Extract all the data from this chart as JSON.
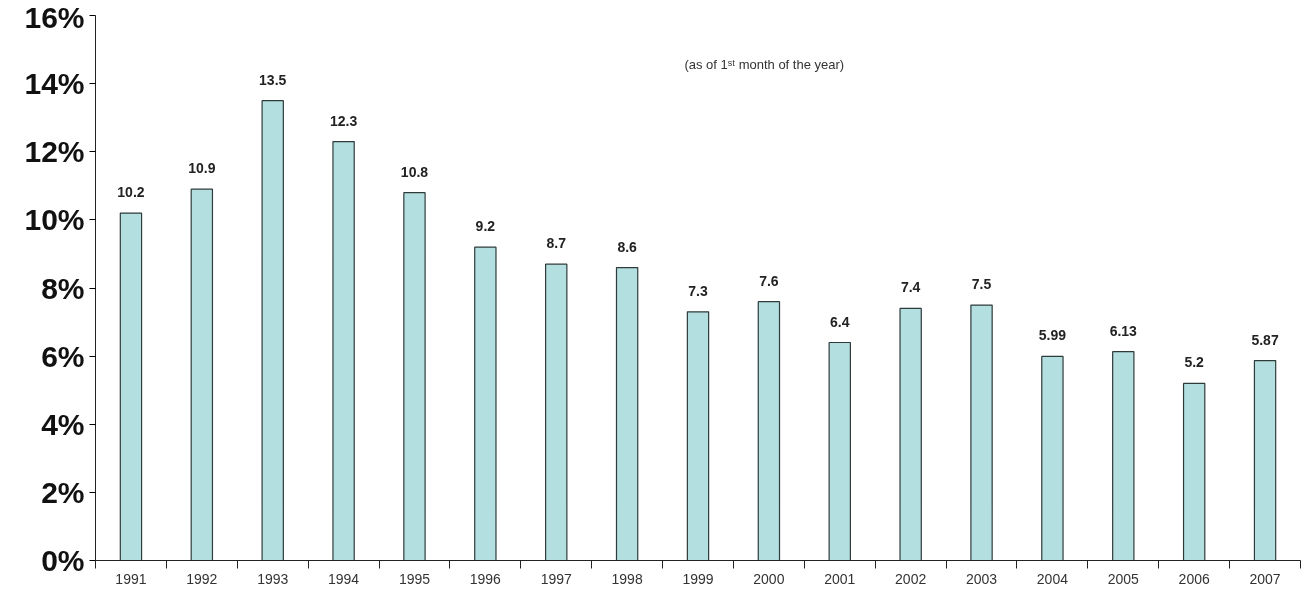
{
  "chart_data": {
    "type": "bar",
    "categories": [
      "1991",
      "1992",
      "1993",
      "1994",
      "1995",
      "1996",
      "1997",
      "1998",
      "1999",
      "2000",
      "2001",
      "2002",
      "2003",
      "2004",
      "2005",
      "2006",
      "2007"
    ],
    "values": [
      10.2,
      10.9,
      13.5,
      12.3,
      10.8,
      9.2,
      8.7,
      8.6,
      7.3,
      7.6,
      6.4,
      7.4,
      7.5,
      5.99,
      6.13,
      5.2,
      5.87
    ],
    "color": "#b4dfe1",
    "ylim": [
      0,
      16
    ],
    "yticks": [
      {
        "value": 0,
        "label": "0%"
      },
      {
        "value": 2,
        "label": "2%"
      },
      {
        "value": 4,
        "label": "4%"
      },
      {
        "value": 6,
        "label": "6%"
      },
      {
        "value": 8,
        "label": "8%"
      },
      {
        "value": 10,
        "label": "10%"
      },
      {
        "value": 12,
        "label": "12%"
      },
      {
        "value": 14,
        "label": "14%"
      },
      {
        "value": 16,
        "label": "16%"
      }
    ],
    "data_labels": true,
    "grid": false,
    "annotations": [
      "(as of 1ˢᵗ month of the year)"
    ]
  }
}
